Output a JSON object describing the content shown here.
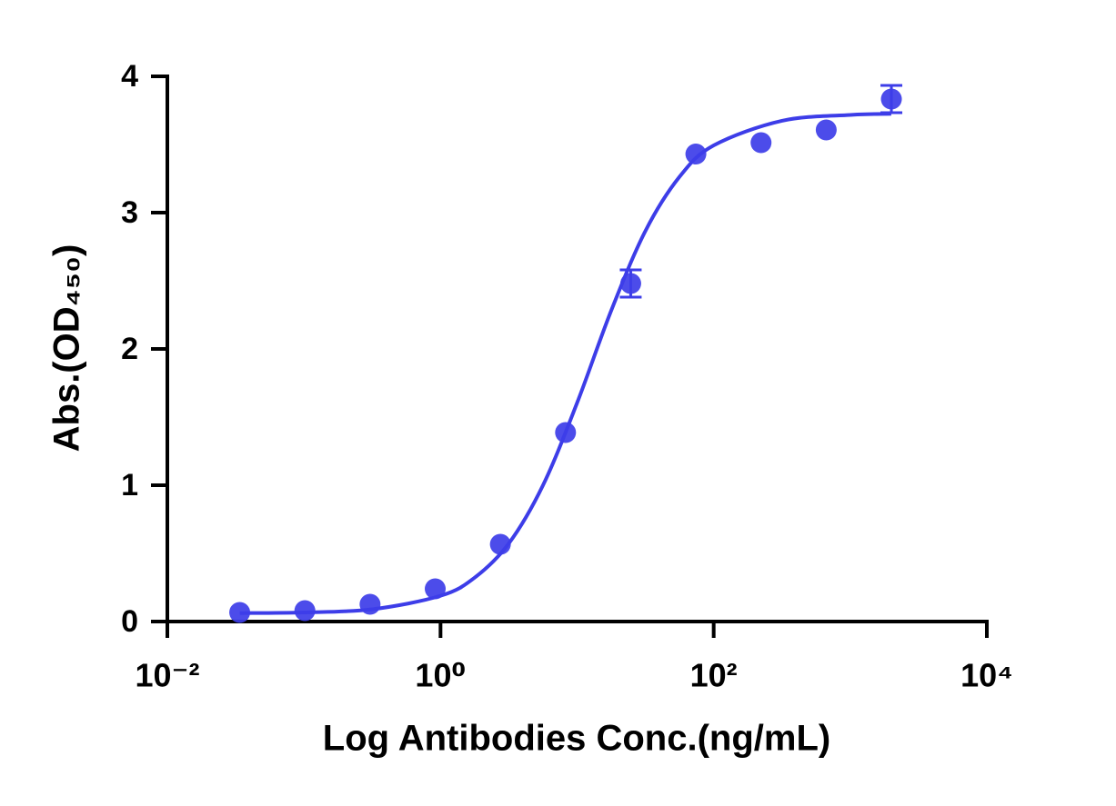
{
  "chart_data": {
    "type": "scatter",
    "xlabel": "Log Antibodies Conc.(ng/mL)",
    "ylabel": "Abs.(OD₄₅₀)",
    "xscale": "log",
    "xlim": [
      0.01,
      10000
    ],
    "ylim": [
      0,
      4
    ],
    "xticks": [
      {
        "value": 0.01,
        "label": "10⁻²"
      },
      {
        "value": 1,
        "label": "10⁰"
      },
      {
        "value": 100,
        "label": "10²"
      },
      {
        "value": 10000,
        "label": "10⁴"
      }
    ],
    "yticks": [
      0,
      1,
      2,
      3,
      4
    ],
    "grid": false,
    "series": [
      {
        "color": "#3d3de8",
        "x": [
          0.03387,
          0.1016,
          0.3048,
          0.9145,
          2.743,
          8.23,
          24.69,
          74.07,
          222.2,
          666.7,
          2000
        ],
        "values": [
          0.067,
          0.08,
          0.127,
          0.24,
          0.567,
          1.387,
          2.48,
          3.43,
          3.513,
          3.607,
          3.833
        ],
        "errors": [
          null,
          null,
          null,
          null,
          null,
          null,
          0.1,
          null,
          null,
          null,
          0.1
        ]
      }
    ],
    "fit_curve": {
      "color": "#3d3de8",
      "x": [
        0.0339,
        0.1,
        0.316,
        1,
        1.778,
        3.162,
        5.623,
        10,
        17.78,
        31.62,
        56.23,
        100,
        316.2,
        1000,
        1995
      ],
      "values": [
        0.062,
        0.067,
        0.09,
        0.189,
        0.322,
        0.573,
        0.999,
        1.604,
        2.282,
        2.865,
        3.263,
        3.493,
        3.674,
        3.717,
        3.725
      ]
    }
  }
}
